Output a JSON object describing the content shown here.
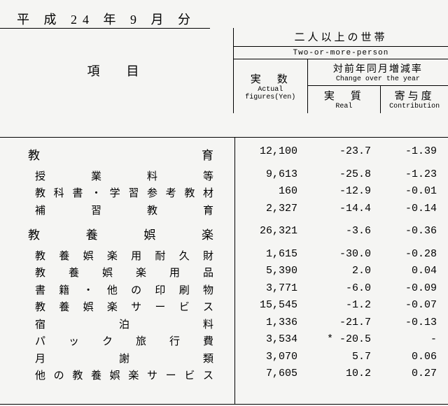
{
  "title": "平 成 24 年 9 月 分",
  "header": {
    "group_jp": "二人以上の世帯",
    "group_en": "Two-or-more-person",
    "items_jp": "項　目",
    "actual_jp": "実　数",
    "actual_en1": "Actual",
    "actual_en2": "figures(Yen)",
    "change_jp": "対前年同月増減率",
    "change_en": "Change over the year",
    "real_jp": "実　質",
    "real_en": "Real",
    "contrib_jp": "寄与度",
    "contrib_en": "Contribution"
  },
  "columns": {
    "vline1": 335,
    "vline2": 440,
    "vline3": 544
  },
  "rows": [
    {
      "kind": "main",
      "label": "教育",
      "c1": "12,100",
      "c2": "-23.7",
      "c3": "-1.39"
    },
    {
      "kind": "gap"
    },
    {
      "kind": "sub",
      "label": "授業料等",
      "c1": "9,613",
      "c2": "-25.8",
      "c3": "-1.23"
    },
    {
      "kind": "sub",
      "label": "教科書・学習参考教材",
      "c1": "160",
      "c2": "-12.9",
      "c3": "-0.01"
    },
    {
      "kind": "sub",
      "label": "補習教育",
      "c1": "2,327",
      "c2": "-14.4",
      "c3": "-0.14"
    },
    {
      "kind": "gap"
    },
    {
      "kind": "main",
      "label": "教養娯楽",
      "c1": "26,321",
      "c2": "-3.6",
      "c3": "-0.36"
    },
    {
      "kind": "gap"
    },
    {
      "kind": "sub",
      "label": "教養娯楽用耐久財",
      "c1": "1,615",
      "c2": "-30.0",
      "c3": "-0.28"
    },
    {
      "kind": "sub",
      "label": "教養娯楽用品",
      "c1": "5,390",
      "c2": "2.0",
      "c3": "0.04"
    },
    {
      "kind": "sub",
      "label": "書籍・他の印刷物",
      "c1": "3,771",
      "c2": "-6.0",
      "c3": "-0.09"
    },
    {
      "kind": "sub",
      "label": "教養娯楽サービス",
      "c1": "15,545",
      "c2": "-1.2",
      "c3": "-0.07"
    },
    {
      "kind": "sub",
      "label": "宿泊料",
      "c1": "1,336",
      "c2": "-21.7",
      "c3": "-0.13"
    },
    {
      "kind": "sub",
      "label": "パック旅行費",
      "c1": "3,534",
      "c2": "* -20.5",
      "c3": "-"
    },
    {
      "kind": "sub",
      "label": "月謝類",
      "c1": "3,070",
      "c2": "5.7",
      "c3": "0.06"
    },
    {
      "kind": "sub",
      "label": "他の教養娯楽サービス",
      "c1": "7,605",
      "c2": "10.2",
      "c3": "0.27"
    }
  ]
}
